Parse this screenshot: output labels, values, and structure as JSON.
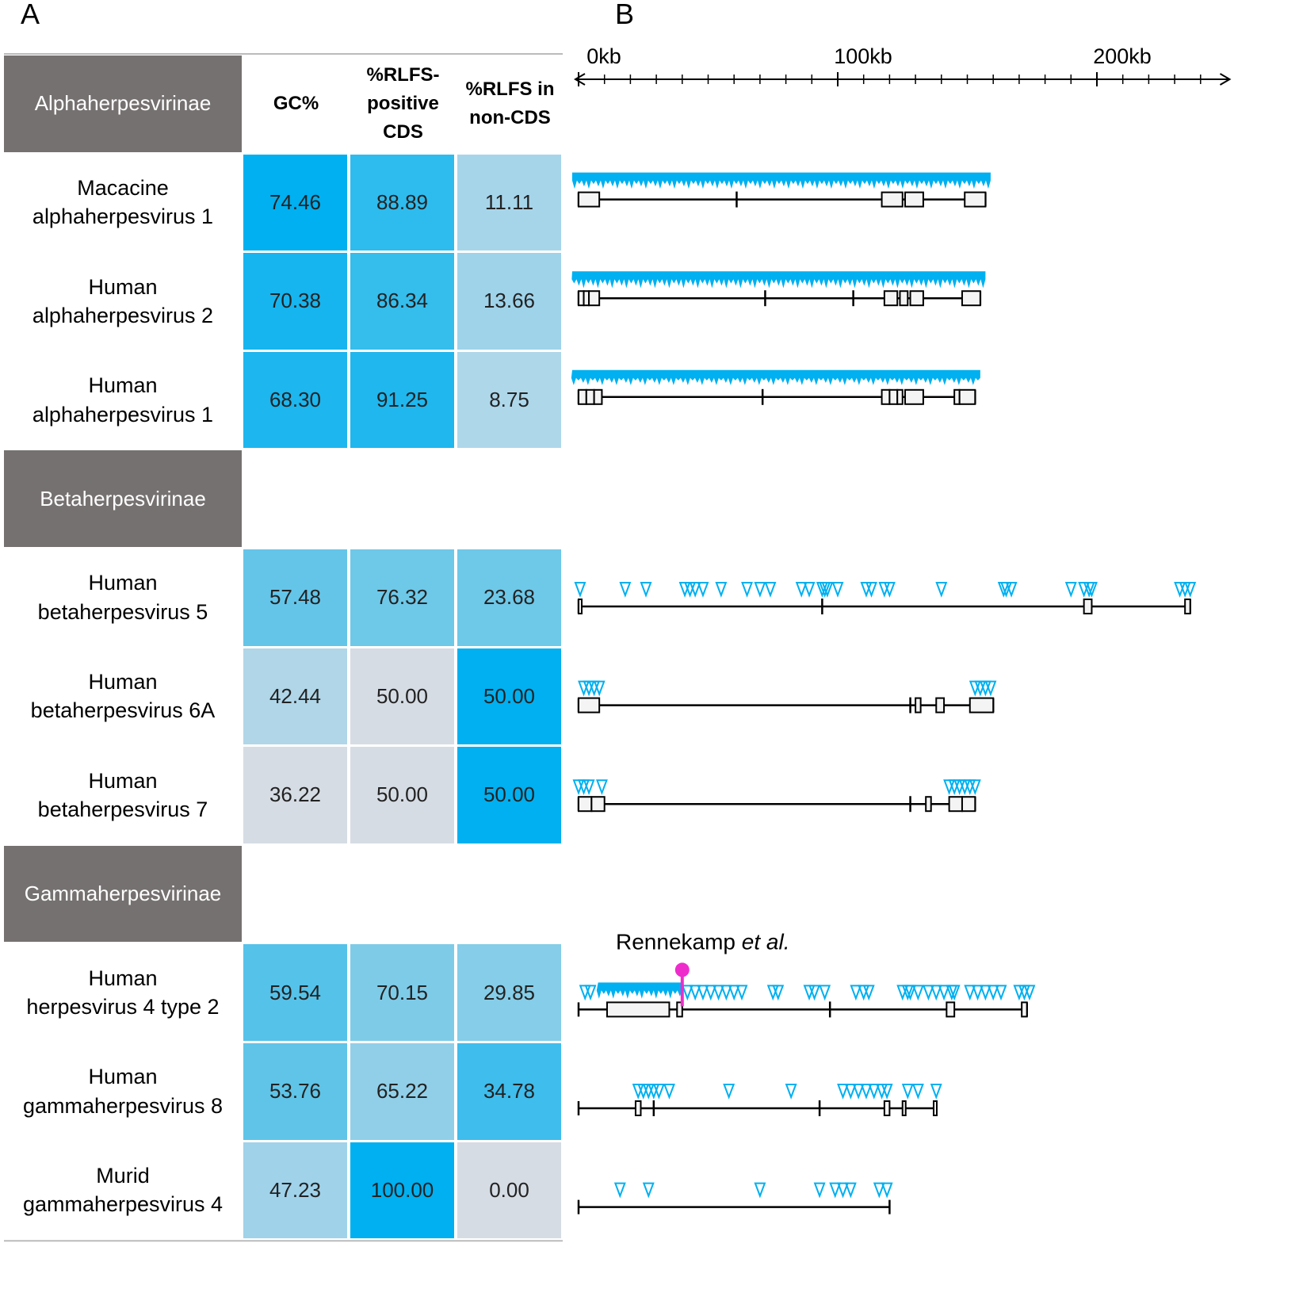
{
  "panels": {
    "a": "A",
    "b": "B"
  },
  "table": {
    "columns": [
      "GC%",
      "%RLFS-\npositive\nCDS",
      "%RLFS in\nnon-CDS"
    ],
    "groups": [
      {
        "name": "Alphaherpesvirinae",
        "rows": [
          {
            "virus": "Macacine\nalphaherpesvirus 1",
            "values": [
              "74.46",
              "88.89",
              "11.11"
            ],
            "colors": [
              "#00b0f0",
              "#2ebcee",
              "#a6d5ea"
            ]
          },
          {
            "virus": "Human\nalphaherpesvirus 2",
            "values": [
              "70.38",
              "86.34",
              "13.66"
            ],
            "colors": [
              "#16b5ef",
              "#35bdec",
              "#9fd3ea"
            ]
          },
          {
            "virus": "Human\nalphaherpesvirus 1",
            "values": [
              "68.30",
              "91.25",
              "8.75"
            ],
            "colors": [
              "#1db6ee",
              "#1fb7ee",
              "#aed7ea"
            ]
          }
        ]
      },
      {
        "name": "Betaherpesvirinae",
        "rows": [
          {
            "virus": "Human\nbetaherpesvirus 5",
            "values": [
              "57.48",
              "76.32",
              "23.68"
            ],
            "colors": [
              "#64c5e8",
              "#6ec8e8",
              "#6ec8e8"
            ]
          },
          {
            "virus": "Human\nbetaherpesvirus 6A",
            "values": [
              "42.44",
              "50.00",
              "50.00"
            ],
            "colors": [
              "#b0d6e8",
              "#d6dce4",
              "#00b0f0"
            ]
          },
          {
            "virus": "Human\nbetaherpesvirus 7",
            "values": [
              "36.22",
              "50.00",
              "50.00"
            ],
            "colors": [
              "#d6dce4",
              "#d6dce4",
              "#00b0f0"
            ]
          }
        ]
      },
      {
        "name": "Gammaherpesvirinae",
        "rows": [
          {
            "virus": "Human\nherpesvirus 4 type 2",
            "values": [
              "59.54",
              "70.15",
              "29.85"
            ],
            "colors": [
              "#55c2ea",
              "#7ecbe8",
              "#85cde8"
            ]
          },
          {
            "virus": "Human\ngammaherpesvirus 8",
            "values": [
              "53.76",
              "65.22",
              "34.78"
            ],
            "colors": [
              "#5fc4e8",
              "#91cfe8",
              "#3fbdec"
            ]
          },
          {
            "virus": "Murid\ngammaherpesvirus 4",
            "values": [
              "47.23",
              "100.00",
              "0.00"
            ],
            "colors": [
              "#a0d2ea",
              "#00b0f0",
              "#d6dce4"
            ]
          }
        ]
      }
    ]
  },
  "chart_data": {
    "type": "genome",
    "xlim": [
      0,
      250
    ],
    "xticks": [
      {
        "value": 0,
        "label": "0kb"
      },
      {
        "value": 100,
        "label": "100kb"
      },
      {
        "value": 200,
        "label": "200kb"
      }
    ],
    "minor_ticks": [
      10,
      20,
      30,
      40,
      50,
      60,
      70,
      80,
      90,
      110,
      120,
      130,
      140,
      150,
      160,
      170,
      180,
      190,
      210,
      220,
      230,
      240
    ],
    "rlfs_color": "#00b0f0",
    "genomes": [
      {
        "length": 157,
        "boxes": [
          [
            0,
            8
          ],
          [
            117,
            125
          ],
          [
            126,
            133
          ],
          [
            149,
            157
          ]
        ],
        "marks": [
          61
        ],
        "rlfs_band": [
          0,
          159
        ],
        "rlfs": []
      },
      {
        "length": 155,
        "boxes": [
          [
            0,
            2
          ],
          [
            2,
            4
          ],
          [
            4,
            8
          ],
          [
            118,
            123
          ],
          [
            124,
            127
          ],
          [
            128,
            133
          ],
          [
            148,
            155
          ]
        ],
        "marks": [
          72,
          106
        ],
        "rlfs_band": [
          0,
          157
        ],
        "rlfs": []
      },
      {
        "length": 153,
        "boxes": [
          [
            0,
            3
          ],
          [
            3,
            6
          ],
          [
            6,
            9
          ],
          [
            117,
            120
          ],
          [
            120,
            123
          ],
          [
            123,
            125
          ],
          [
            126,
            133
          ],
          [
            145,
            147
          ],
          [
            147,
            153
          ]
        ],
        "marks": [
          71
        ],
        "rlfs_band": [
          0,
          155
        ],
        "rlfs": []
      },
      {
        "length": 236,
        "boxes": [
          [
            0,
            1
          ],
          [
            195,
            198
          ],
          [
            234,
            236
          ]
        ],
        "marks": [
          94
        ],
        "rlfs": [
          0.6,
          18,
          26,
          41,
          43,
          45,
          48,
          55,
          65,
          70,
          74,
          86,
          89,
          94,
          95,
          96,
          100,
          111,
          113,
          118,
          120,
          140,
          164,
          165,
          167,
          190,
          195,
          197,
          198,
          232,
          234,
          236
        ]
      },
      {
        "length": 160,
        "boxes": [
          [
            0,
            8
          ],
          [
            130,
            132
          ],
          [
            138,
            141
          ],
          [
            151,
            160
          ]
        ],
        "marks": [
          128
        ],
        "rlfs": [
          2,
          4,
          6,
          8,
          153,
          155,
          157,
          159
        ]
      },
      {
        "length": 153,
        "boxes": [
          [
            0,
            5
          ],
          [
            5,
            10
          ],
          [
            134,
            136
          ],
          [
            143,
            148
          ],
          [
            148,
            153
          ]
        ],
        "marks": [
          128
        ],
        "rlfs": [
          0,
          2,
          4,
          9,
          143,
          145,
          147,
          149,
          151,
          153
        ]
      },
      {
        "length": 173,
        "boxes": [
          [
            11,
            35
          ],
          [
            38,
            40
          ],
          [
            142,
            145
          ],
          [
            171,
            173
          ]
        ],
        "marks": [
          97
        ],
        "rlfs_band": [
          10,
          40
        ],
        "rlfs": [
          2.5,
          4.6,
          42,
          45,
          48,
          51,
          54,
          57,
          60,
          63,
          75,
          77,
          89,
          91,
          95,
          107,
          110,
          112,
          125,
          127,
          128,
          131,
          135,
          138,
          141,
          144,
          145,
          151,
          154,
          157,
          160,
          163,
          170,
          172,
          174
        ]
      },
      {
        "length": 138,
        "boxes": [
          [
            22,
            24
          ],
          [
            118,
            120
          ],
          [
            125,
            126
          ],
          [
            137,
            138
          ]
        ],
        "marks": [
          29,
          93
        ],
        "rlfs": [
          23,
          25,
          27,
          29,
          31,
          35,
          58,
          82,
          102,
          105,
          108,
          111,
          114,
          117,
          119,
          127,
          131,
          138
        ]
      },
      {
        "length": 120,
        "boxes": [],
        "marks": [],
        "rlfs": [
          16,
          27,
          70,
          93,
          99,
          102,
          105,
          116,
          119
        ]
      }
    ],
    "annotation": {
      "genome": 6,
      "x": 40,
      "text": "Rennekamp ",
      "italic": "et al.",
      "color": "#ee2ccc"
    }
  }
}
